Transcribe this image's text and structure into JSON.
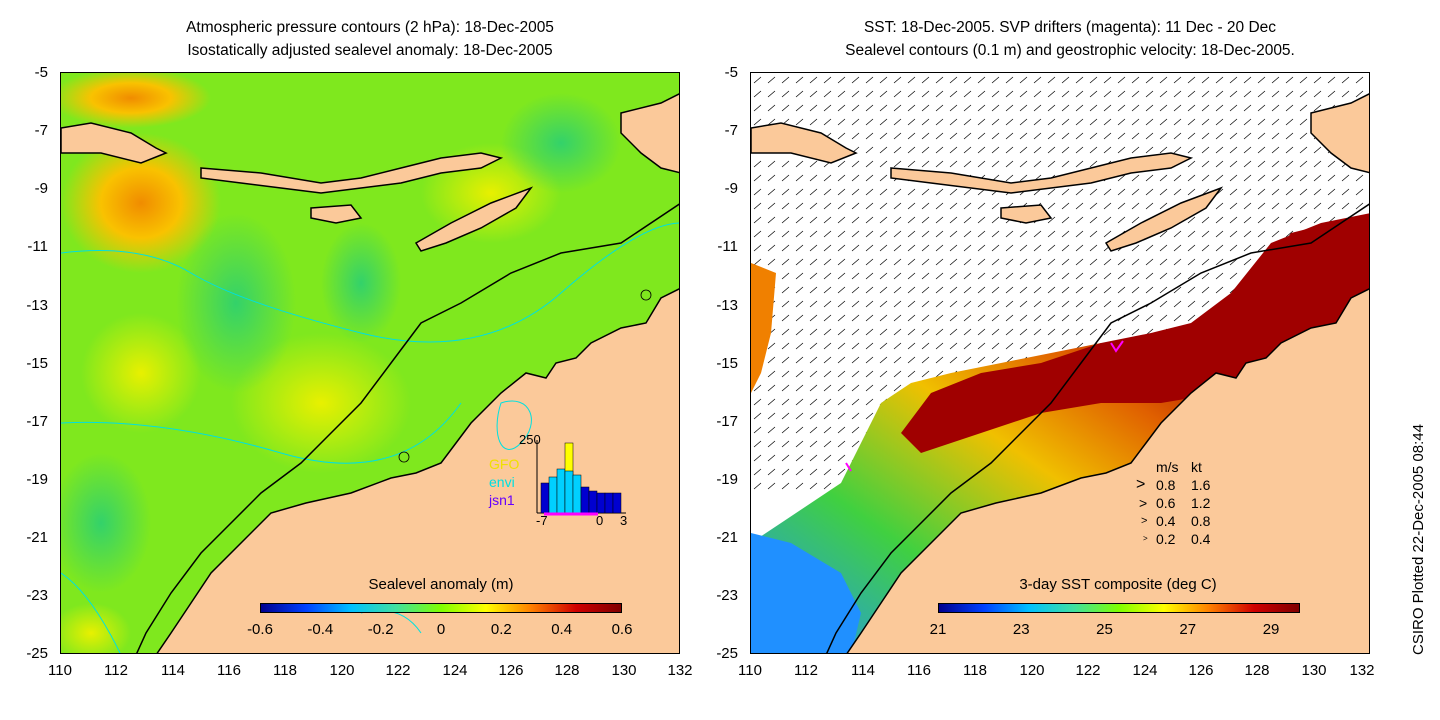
{
  "left_panel": {
    "title_line1": "Atmospheric pressure contours (2 hPa): 18-Dec-2005",
    "title_line2": "Isostatically adjusted sealevel anomaly: 18-Dec-2005",
    "colorbar_title": "Sealevel anomaly (m)",
    "colorbar_labels": [
      "-0.6",
      "-0.4",
      "-0.2",
      "0",
      "0.2",
      "0.4",
      "0.6"
    ],
    "inset": {
      "ymax_label": "250",
      "x_labels": [
        "-7",
        "0",
        "3"
      ],
      "satellites": [
        {
          "name": "GFO",
          "color": "#ffff00"
        },
        {
          "name": "envi",
          "color": "#00ffff"
        },
        {
          "name": "jsn1",
          "color": "#6600ff"
        }
      ]
    }
  },
  "right_panel": {
    "title_line1": "SST: 18-Dec-2005. SVP drifters (magenta): 11 Dec - 20 Dec",
    "title_line2": "Sealevel contours (0.1 m) and geostrophic velocity: 18-Dec-2005.",
    "colorbar_title": "3-day SST composite (deg C)",
    "colorbar_labels": [
      "21",
      "23",
      "25",
      "27",
      "29"
    ],
    "velocity_legend": {
      "header_ms": "m/s",
      "header_kt": "kt",
      "rows": [
        {
          "ms": "0.8",
          "kt": "1.6"
        },
        {
          "ms": "0.6",
          "kt": "1.2"
        },
        {
          "ms": "0.4",
          "kt": "0.8"
        },
        {
          "ms": "0.2",
          "kt": "0.4"
        }
      ]
    }
  },
  "axes": {
    "y_labels": [
      "-5",
      "-7",
      "-9",
      "-11",
      "-13",
      "-15",
      "-17",
      "-19",
      "-21",
      "-23",
      "-25"
    ],
    "x_labels": [
      "110",
      "112",
      "114",
      "116",
      "118",
      "120",
      "122",
      "124",
      "126",
      "128",
      "130",
      "132"
    ]
  },
  "credit": "CSIRO Plotted 22-Dec-2005 08:44",
  "colors": {
    "land": "#fbc99a",
    "ocean_green": "#7fe81e",
    "anomaly_high": "#f9a400",
    "sst_hot": "#a00000",
    "drifters": "#ff00ff"
  }
}
